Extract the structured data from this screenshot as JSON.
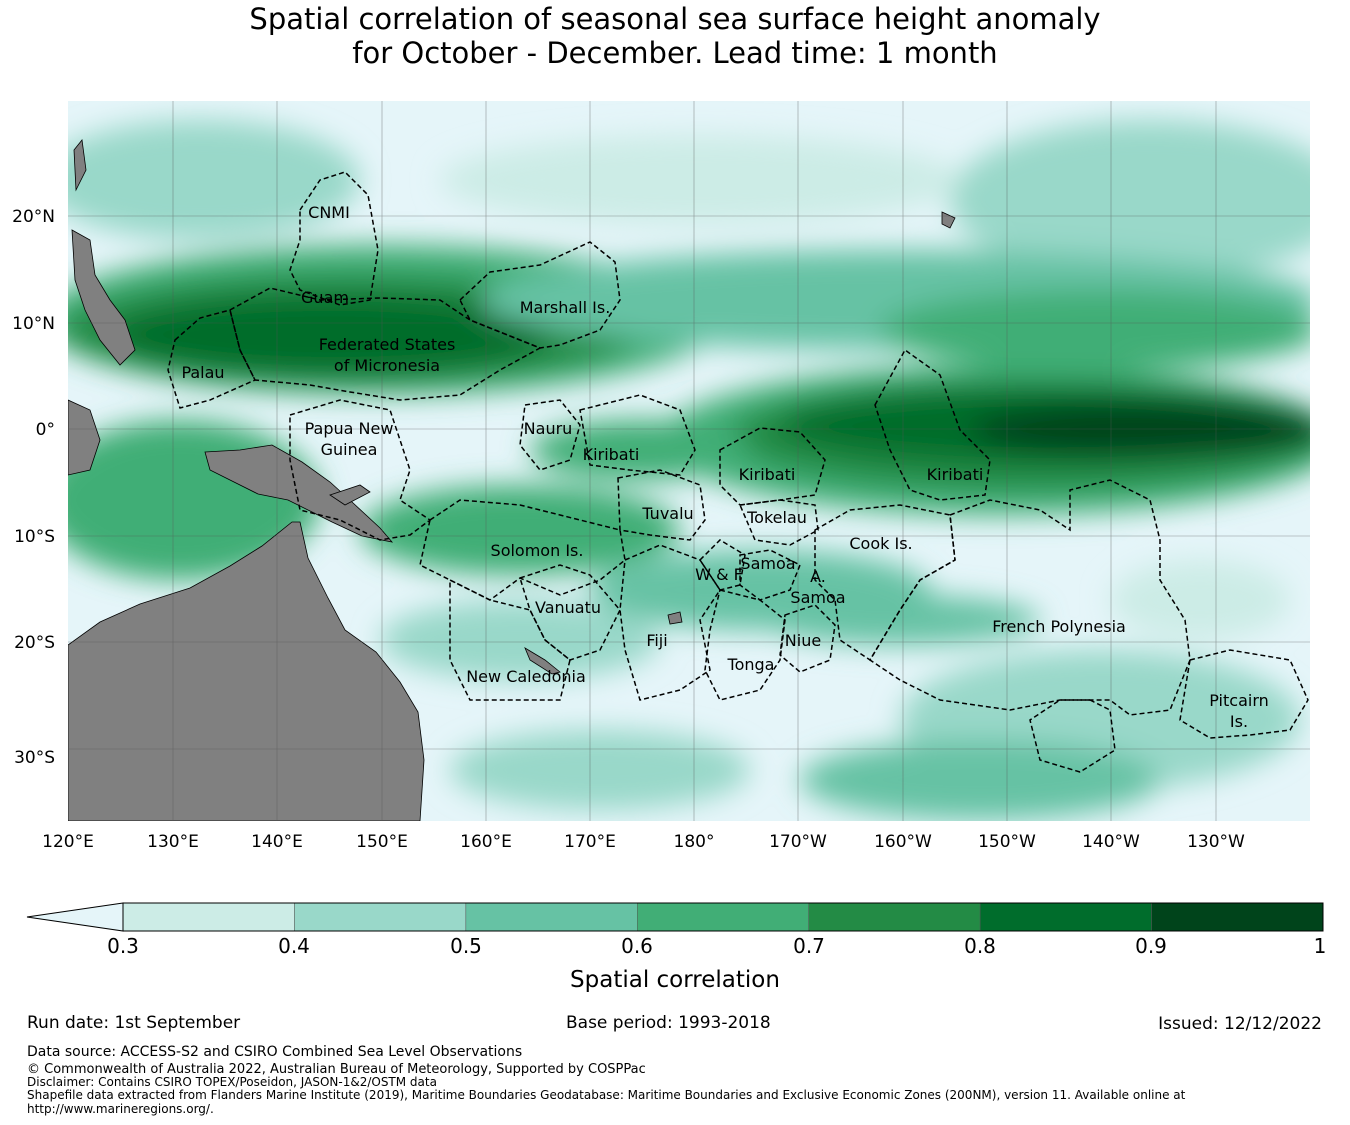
{
  "title": {
    "line1": "Spatial correlation of seasonal sea surface height anomaly",
    "line2": "for October - December. Lead time: 1 month"
  },
  "map": {
    "lat_ticks": [
      "20°N",
      "10°N",
      "0°",
      "10°S",
      "20°S",
      "30°S"
    ],
    "lon_ticks": [
      "120°E",
      "130°E",
      "140°E",
      "150°E",
      "160°E",
      "170°E",
      "180°",
      "170°W",
      "160°W",
      "150°W",
      "140°W",
      "130°W"
    ],
    "regions": [
      {
        "label": "CNMI"
      },
      {
        "label": "Guam"
      },
      {
        "label": "Marshall Is."
      },
      {
        "label": "Federated States"
      },
      {
        "label": "of Micronesia"
      },
      {
        "label": "Palau"
      },
      {
        "label": "Papua New"
      },
      {
        "label": "Guinea"
      },
      {
        "label": "Nauru"
      },
      {
        "label": "Kiribati"
      },
      {
        "label": "Kiribati"
      },
      {
        "label": "Kiribati"
      },
      {
        "label": "Tuvalu"
      },
      {
        "label": "Tokelau"
      },
      {
        "label": "Solomon Is."
      },
      {
        "label": "Cook Is."
      },
      {
        "label": "Samoa"
      },
      {
        "label": "W & F"
      },
      {
        "label": "A."
      },
      {
        "label": "Samoa"
      },
      {
        "label": "Vanuatu"
      },
      {
        "label": "Fiji"
      },
      {
        "label": "Niue"
      },
      {
        "label": "Tonga"
      },
      {
        "label": "French Polynesia"
      },
      {
        "label": "New Caledonia"
      },
      {
        "label": "Pitcairn"
      },
      {
        "label": "Is."
      }
    ]
  },
  "colorbar": {
    "label": "Spatial correlation",
    "ticks": [
      "0.3",
      "0.4",
      "0.5",
      "0.6",
      "0.7",
      "0.8",
      "0.9",
      "1"
    ],
    "under_color": "#e5f5f9",
    "colors": [
      "#ccece6",
      "#99d8c9",
      "#66c2a4",
      "#41ae76",
      "#238b45",
      "#006d2c",
      "#00441b"
    ]
  },
  "footer": {
    "run_date": "Run date: 1st September",
    "base_period": "Base period: 1993-2018",
    "issued": "Issued: 12/12/2022",
    "data_source": "Data source: ACCESS-S2 and CSIRO Combined Sea Level Observations",
    "copyright": "© Commonwealth of Australia 2022, Australian Bureau of Meteorology, Supported by COSPPac",
    "disclaimer": "Disclaimer: Contains CSIRO TOPEX/Poseidon, JASON-1&2/OSTM data",
    "shapefile": "Shapefile data extracted from Flanders Marine Institute (2019), Maritime Boundaries Geodatabase: Maritime Boundaries and Exclusive Economic Zones (200NM), version 11. Available online at",
    "url": "http://www.marineregions.org/."
  }
}
